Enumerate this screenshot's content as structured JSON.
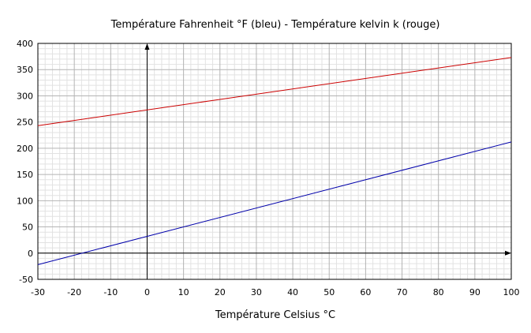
{
  "chart_data": {
    "type": "line",
    "title": "Température Fahrenheit °F (bleu) - Température kelvin k (rouge)",
    "xlabel": "Température Celsius °C",
    "ylabel": "",
    "xlim": [
      -30,
      100
    ],
    "ylim": [
      -50,
      400
    ],
    "x_ticks": [
      -30,
      -20,
      -10,
      0,
      10,
      20,
      30,
      40,
      50,
      60,
      70,
      80,
      90,
      100
    ],
    "y_ticks": [
      -50,
      0,
      50,
      100,
      150,
      200,
      250,
      300,
      350,
      400
    ],
    "grid": true,
    "series": [
      {
        "color": "#0000aa",
        "x": [
          -30,
          100
        ],
        "y": [
          -22,
          212
        ]
      },
      {
        "color": "#cc0000",
        "x": [
          -30,
          100
        ],
        "y": [
          243.15,
          373.15
        ]
      }
    ]
  }
}
